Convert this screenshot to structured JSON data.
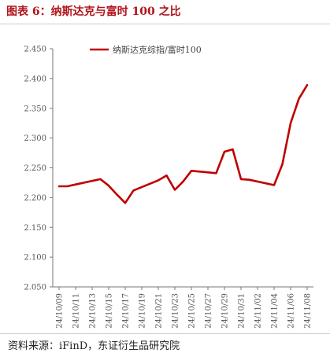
{
  "page": {
    "title": "图表 6：纳斯达克与富时 100 之比",
    "source": "资料来源：iFinD，东证衍生品研究院"
  },
  "chart_data": {
    "type": "line",
    "title": "图表 6：纳斯达克与富时 100 之比",
    "xlabel": "",
    "ylabel": "",
    "ylim": [
      2.05,
      2.45
    ],
    "yticks": [
      "2.050",
      "2.100",
      "2.150",
      "2.200",
      "2.250",
      "2.300",
      "2.350",
      "2.400",
      "2.450"
    ],
    "xticks": [
      "24/10/09",
      "24/10/11",
      "24/10/13",
      "24/10/15",
      "24/10/17",
      "24/10/19",
      "24/10/21",
      "24/10/23",
      "24/10/25",
      "24/10/27",
      "24/10/29",
      "24/10/31",
      "24/11/02",
      "24/11/04",
      "24/11/06",
      "24/11/08"
    ],
    "x": [
      "24/10/09",
      "24/10/10",
      "24/10/11",
      "24/10/14",
      "24/10/15",
      "24/10/16",
      "24/10/17",
      "24/10/18",
      "24/10/21",
      "24/10/22",
      "24/10/23",
      "24/10/24",
      "24/10/25",
      "24/10/28",
      "24/10/29",
      "24/10/30",
      "24/10/31",
      "24/11/01",
      "24/11/04",
      "24/11/05",
      "24/11/06",
      "24/11/07",
      "24/11/08"
    ],
    "series": [
      {
        "name": "纳斯达克综指/富时100",
        "color": "#c00000",
        "values": [
          2.219,
          2.219,
          2.222,
          2.231,
          2.22,
          2.205,
          2.191,
          2.212,
          2.229,
          2.237,
          2.213,
          2.227,
          2.245,
          2.241,
          2.277,
          2.281,
          2.231,
          2.23,
          2.221,
          2.256,
          2.325,
          2.366,
          2.389
        ]
      }
    ],
    "legend": "top-left",
    "grid": false
  }
}
